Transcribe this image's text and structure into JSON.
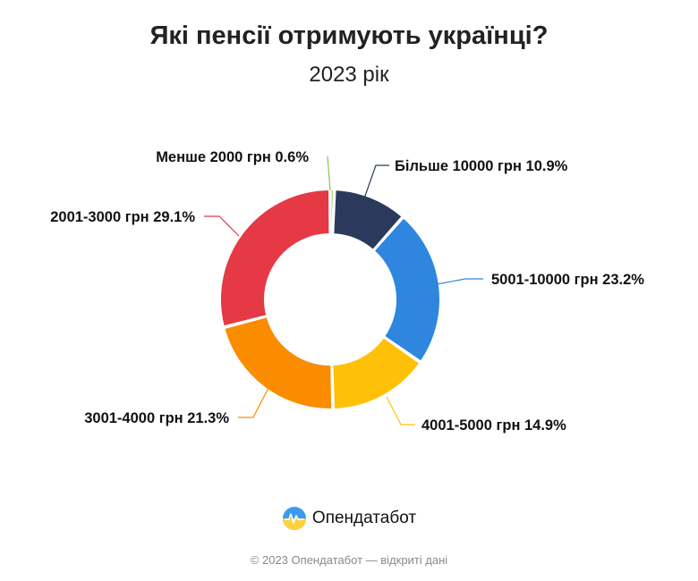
{
  "header": {
    "title": "Які пенсії отримують українці?",
    "subtitle": "2023 рік"
  },
  "chart_data": {
    "type": "pie",
    "variant": "donut",
    "title": "Які пенсії отримують українці?",
    "subtitle": "2023 рік",
    "series": [
      {
        "label": "Менше 2000 грн",
        "value": 0.6,
        "value_label": "0.6%",
        "color": "#8BC34A"
      },
      {
        "label": "Більше 10000 грн",
        "value": 10.9,
        "value_label": "10.9%",
        "color": "#2B3A5C"
      },
      {
        "label": "5001-10000 грн",
        "value": 23.2,
        "value_label": "23.2%",
        "color": "#2E86DE"
      },
      {
        "label": "4001-5000 грн",
        "value": 14.9,
        "value_label": "14.9%",
        "color": "#FFC107"
      },
      {
        "label": "3001-4000 грн",
        "value": 21.3,
        "value_label": "21.3%",
        "color": "#FB8C00"
      },
      {
        "label": "2001-3000 грн",
        "value": 29.1,
        "value_label": "29.1%",
        "color": "#E53945"
      }
    ],
    "legend": "none (direct labels)",
    "start_angle": "top, clockwise"
  },
  "brand": {
    "name": "Опендатабот",
    "icon": "opendatabot-logo-icon",
    "logo_colors": [
      "#3B9BF0",
      "#FFD23F"
    ]
  },
  "footer": {
    "text": "© 2023 Опендатабот — відкриті дані"
  }
}
